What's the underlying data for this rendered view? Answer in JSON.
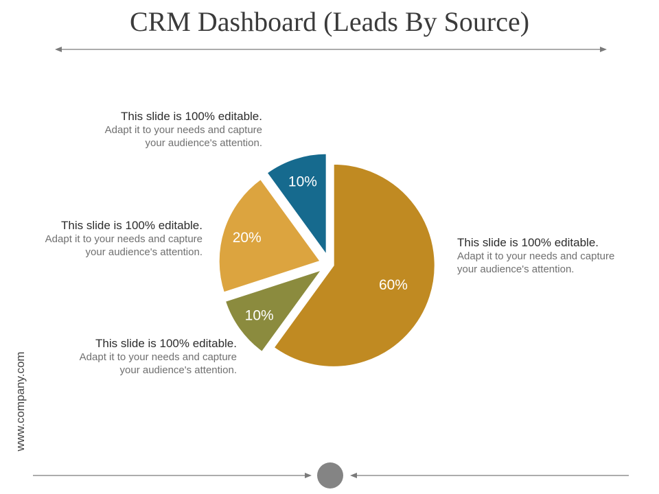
{
  "title": "CRM Dashboard (Leads By Source)",
  "footer": {
    "url": "www.company.com"
  },
  "callouts": [
    {
      "head": "This slide is 100% editable.",
      "body": "Adapt it to your needs and capture your audience's attention."
    },
    {
      "head": "This slide is 100% editable.",
      "body": "Adapt it to your needs and capture your audience's attention."
    },
    {
      "head": "This slide is 100% editable.",
      "body": "Adapt it to your needs and capture your audience's attention."
    },
    {
      "head": "This slide is 100% editable.",
      "body": "Adapt it to your needs and capture your audience's attention."
    }
  ],
  "chart_data": {
    "type": "pie",
    "title": "CRM Dashboard (Leads By Source)",
    "slices": [
      {
        "value": 60,
        "label": "60%",
        "color": "#c08a22"
      },
      {
        "value": 10,
        "label": "10%",
        "color": "#8b8b3e"
      },
      {
        "value": 20,
        "label": "20%",
        "color": "#dca43f"
      },
      {
        "value": 10,
        "label": "10%",
        "color": "#166a8e"
      }
    ]
  },
  "colors": {
    "line": "#7a7a7a",
    "dot": "#848484"
  }
}
